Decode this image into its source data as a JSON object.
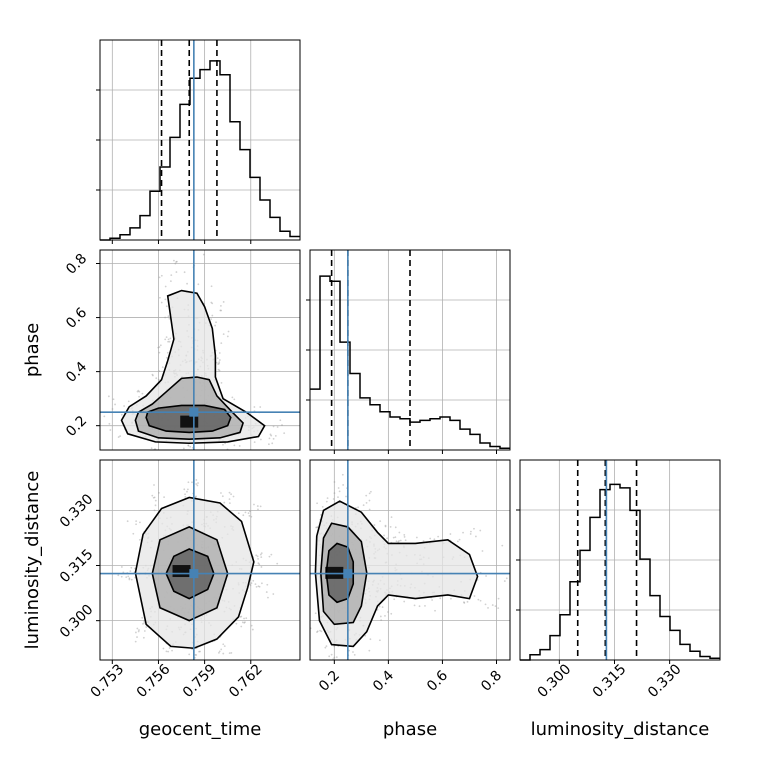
{
  "chart_data": {
    "type": "corner",
    "parameters": [
      "geocent_time",
      "phase",
      "luminosity_distance"
    ],
    "axis_labels": {
      "geocent_time": "geocent_time",
      "phase": "phase",
      "luminosity_distance": "luminosity_distance"
    },
    "ranges": {
      "geocent_time": [
        0.7522,
        0.7652
      ],
      "phase": [
        0.11,
        0.85
      ],
      "luminosity_distance": [
        0.2893,
        0.3437
      ]
    },
    "ticks": {
      "geocent_time": [
        "0.753",
        "0.756",
        "0.759",
        "0.762"
      ],
      "phase": [
        "0.2",
        "0.4",
        "0.6",
        "0.8"
      ],
      "luminosity_distance": [
        "0.300",
        "0.315",
        "0.330"
      ]
    },
    "truths": {
      "geocent_time": 0.7583,
      "phase": 0.25,
      "luminosity_distance": 0.3128
    },
    "quantiles": {
      "geocent_time": [
        0.7562,
        0.758,
        0.7598
      ],
      "phase": [
        0.19,
        0.25,
        0.48
      ],
      "luminosity_distance": [
        0.305,
        0.3125,
        0.321
      ]
    },
    "hist_max": 1.15,
    "histograms": {
      "geocent_time": {
        "bin_start": 0.7522,
        "bin_width": 0.00065,
        "counts": [
          0.0,
          0.01,
          0.03,
          0.07,
          0.14,
          0.28,
          0.42,
          0.59,
          0.78,
          0.93,
          0.98,
          1.03,
          0.95,
          0.68,
          0.52,
          0.36,
          0.23,
          0.13,
          0.05,
          0.02
        ]
      },
      "phase": {
        "bin_start": 0.11,
        "bin_width": 0.037,
        "counts": [
          0.35,
          1.0,
          0.97,
          0.62,
          0.44,
          0.3,
          0.26,
          0.22,
          0.19,
          0.18,
          0.16,
          0.17,
          0.18,
          0.19,
          0.17,
          0.12,
          0.09,
          0.04,
          0.02,
          0.01
        ]
      },
      "luminosity_distance": {
        "bin_start": 0.2893,
        "bin_width": 0.00272,
        "counts": [
          0.0,
          0.03,
          0.06,
          0.14,
          0.26,
          0.45,
          0.63,
          0.82,
          0.98,
          1.01,
          0.99,
          0.86,
          0.58,
          0.37,
          0.25,
          0.17,
          0.09,
          0.05,
          0.02,
          0.01
        ]
      }
    },
    "joint_2d": [
      {
        "x": "geocent_time",
        "y": "phase",
        "contours": [
          [
            [
              0.7552,
              0.23
            ],
            [
              0.7554,
              0.2
            ],
            [
              0.7565,
              0.18
            ],
            [
              0.758,
              0.175
            ],
            [
              0.7595,
              0.18
            ],
            [
              0.7605,
              0.2
            ],
            [
              0.7607,
              0.23
            ],
            [
              0.7603,
              0.26
            ],
            [
              0.759,
              0.275
            ],
            [
              0.7575,
              0.275
            ],
            [
              0.756,
              0.265
            ],
            [
              0.7553,
              0.25
            ]
          ],
          [
            [
              0.7545,
              0.22
            ],
            [
              0.7547,
              0.18
            ],
            [
              0.756,
              0.155
            ],
            [
              0.758,
              0.15
            ],
            [
              0.76,
              0.155
            ],
            [
              0.7613,
              0.175
            ],
            [
              0.7615,
              0.21
            ],
            [
              0.7608,
              0.25
            ],
            [
              0.7598,
              0.31
            ],
            [
              0.7593,
              0.37
            ],
            [
              0.7585,
              0.38
            ],
            [
              0.7575,
              0.375
            ],
            [
              0.7566,
              0.33
            ],
            [
              0.7556,
              0.28
            ],
            [
              0.7547,
              0.25
            ]
          ],
          [
            [
              0.7536,
              0.22
            ],
            [
              0.754,
              0.17
            ],
            [
              0.7558,
              0.14
            ],
            [
              0.758,
              0.135
            ],
            [
              0.7605,
              0.14
            ],
            [
              0.7625,
              0.16
            ],
            [
              0.7629,
              0.2
            ],
            [
              0.7617,
              0.25
            ],
            [
              0.7602,
              0.3
            ],
            [
              0.7597,
              0.38
            ],
            [
              0.7597,
              0.46
            ],
            [
              0.7595,
              0.56
            ],
            [
              0.759,
              0.64
            ],
            [
              0.7585,
              0.69
            ],
            [
              0.7575,
              0.7
            ],
            [
              0.7566,
              0.68
            ],
            [
              0.7568,
              0.6
            ],
            [
              0.757,
              0.52
            ],
            [
              0.7566,
              0.44
            ],
            [
              0.7562,
              0.37
            ],
            [
              0.7552,
              0.31
            ],
            [
              0.7541,
              0.27
            ]
          ]
        ],
        "density_peak": [
          0.758,
          0.215
        ]
      },
      {
        "x": "geocent_time",
        "y": "luminosity_distance",
        "contours": [
          [
            [
              0.7565,
              0.3128
            ],
            [
              0.757,
              0.308
            ],
            [
              0.758,
              0.306
            ],
            [
              0.7592,
              0.3085
            ],
            [
              0.7596,
              0.3128
            ],
            [
              0.7592,
              0.3175
            ],
            [
              0.758,
              0.3195
            ],
            [
              0.757,
              0.3175
            ]
          ],
          [
            [
              0.7556,
              0.3128
            ],
            [
              0.7561,
              0.3035
            ],
            [
              0.758,
              0.3
            ],
            [
              0.7598,
              0.3035
            ],
            [
              0.7605,
              0.3128
            ],
            [
              0.7598,
              0.322
            ],
            [
              0.758,
              0.3255
            ],
            [
              0.7561,
              0.322
            ]
          ],
          [
            [
              0.7545,
              0.313
            ],
            [
              0.7552,
              0.299
            ],
            [
              0.7568,
              0.293
            ],
            [
              0.7583,
              0.2925
            ],
            [
              0.7598,
              0.295
            ],
            [
              0.7612,
              0.301
            ],
            [
              0.7618,
              0.309
            ],
            [
              0.7622,
              0.316
            ],
            [
              0.7614,
              0.327
            ],
            [
              0.76,
              0.332
            ],
            [
              0.758,
              0.3335
            ],
            [
              0.7562,
              0.3305
            ],
            [
              0.755,
              0.3235
            ]
          ]
        ],
        "density_peak": [
          0.7575,
          0.3135
        ]
      },
      {
        "x": "phase",
        "y": "luminosity_distance",
        "contours": [
          [
            [
              0.17,
              0.313
            ],
            [
              0.18,
              0.307
            ],
            [
              0.21,
              0.305
            ],
            [
              0.25,
              0.306
            ],
            [
              0.27,
              0.31
            ],
            [
              0.27,
              0.316
            ],
            [
              0.25,
              0.32
            ],
            [
              0.21,
              0.321
            ],
            [
              0.18,
              0.319
            ]
          ],
          [
            [
              0.15,
              0.313
            ],
            [
              0.16,
              0.3025
            ],
            [
              0.2,
              0.299
            ],
            [
              0.27,
              0.2995
            ],
            [
              0.3,
              0.304
            ],
            [
              0.32,
              0.313
            ],
            [
              0.3,
              0.3215
            ],
            [
              0.25,
              0.3255
            ],
            [
              0.19,
              0.3265
            ],
            [
              0.16,
              0.3225
            ]
          ],
          [
            [
              0.13,
              0.313
            ],
            [
              0.145,
              0.3
            ],
            [
              0.19,
              0.2935
            ],
            [
              0.27,
              0.293
            ],
            [
              0.32,
              0.297
            ],
            [
              0.36,
              0.304
            ],
            [
              0.4,
              0.307
            ],
            [
              0.5,
              0.306
            ],
            [
              0.62,
              0.307
            ],
            [
              0.7,
              0.306
            ],
            [
              0.73,
              0.312
            ],
            [
              0.7,
              0.318
            ],
            [
              0.62,
              0.322
            ],
            [
              0.5,
              0.321
            ],
            [
              0.4,
              0.321
            ],
            [
              0.36,
              0.324
            ],
            [
              0.3,
              0.3295
            ],
            [
              0.22,
              0.3325
            ],
            [
              0.16,
              0.33
            ],
            [
              0.135,
              0.323
            ]
          ]
        ],
        "density_peak": [
          0.2,
          0.313
        ]
      }
    ]
  }
}
